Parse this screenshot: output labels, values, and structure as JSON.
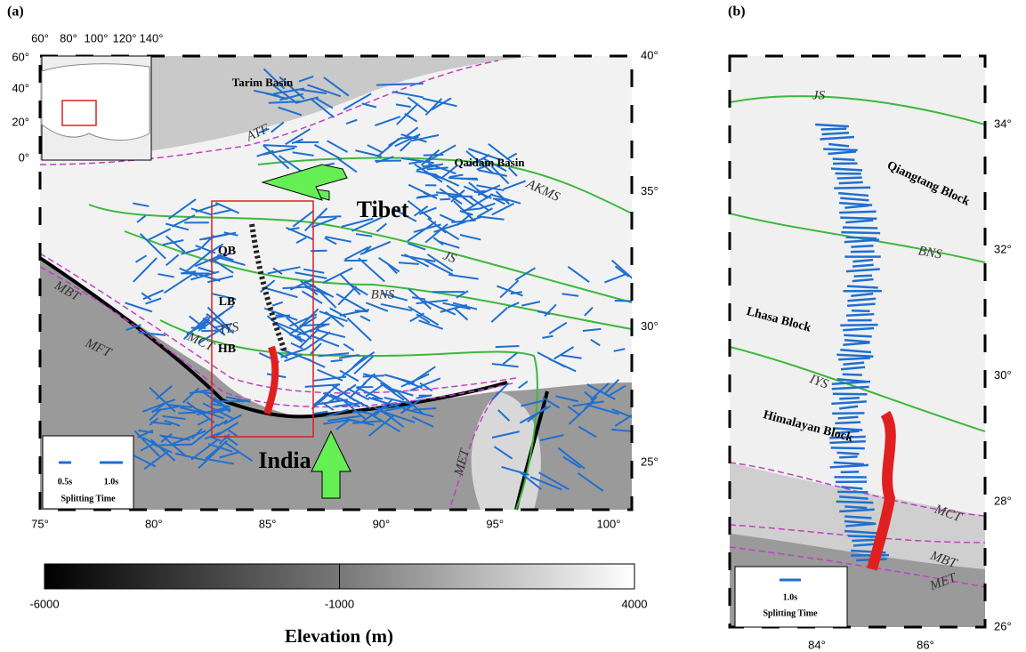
{
  "panel_a": {
    "label": "(a)",
    "lon_ticks": [
      "75°",
      "80°",
      "85°",
      "90°",
      "95°",
      "100°"
    ],
    "lat_ticks": [
      "25°",
      "30°",
      "35°",
      "40°"
    ],
    "inset": {
      "lon_ticks": [
        "60°",
        "80°",
        "100°",
        "120°",
        "140°"
      ],
      "lat_ticks": [
        "60°",
        "40°",
        "20°",
        "0°"
      ]
    },
    "places": [
      "Tarim Basin",
      "Qaidam Basin",
      "Tibet",
      "India"
    ],
    "faults": [
      "ATF",
      "AKMS",
      "JS",
      "BNS",
      "IYS",
      "MCT",
      "MBT",
      "MFT",
      "MET"
    ],
    "blocks": [
      "QB",
      "LB",
      "HB"
    ],
    "legend": {
      "scales": [
        "0.5s",
        "1.0s"
      ],
      "title": "Splitting Time"
    }
  },
  "panel_b": {
    "label": "(b)",
    "lon_ticks": [
      "84°",
      "86°"
    ],
    "lat_ticks": [
      "34°",
      "32°",
      "30°",
      "28°",
      "26°"
    ],
    "faults": [
      "JS",
      "BNS",
      "IYS",
      "MCT",
      "MBT",
      "MET"
    ],
    "blocks": [
      "Qiangtang Block",
      "Lhasa Block",
      "Himalayan Block"
    ],
    "legend": {
      "scale": "1.0s",
      "title": "Splitting Time"
    }
  },
  "colorbar": {
    "range": [
      -6000,
      4000
    ],
    "ticks": [
      -6000,
      -1000,
      4000
    ],
    "label": "Elevation (m)"
  }
}
